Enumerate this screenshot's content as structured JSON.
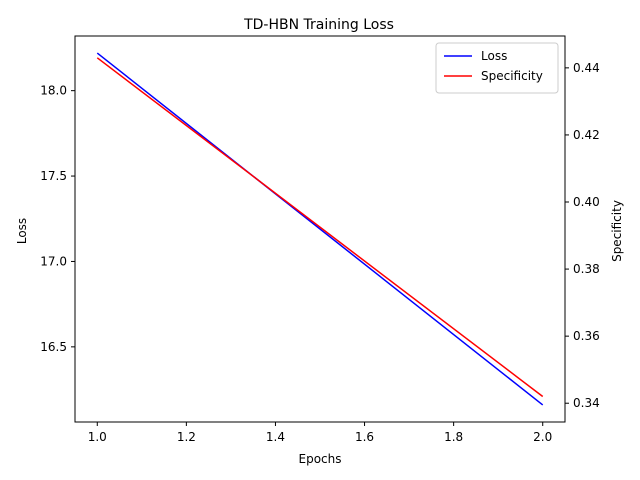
{
  "chart_data": {
    "type": "line",
    "title": "TD-HBN Training Loss",
    "xlabel": "Epochs",
    "ylabel": "Loss",
    "y2label": "Specificity",
    "xlim": [
      0.95,
      2.05
    ],
    "ylim": [
      16.06,
      18.32
    ],
    "y2lim": [
      0.3344,
      0.4495
    ],
    "xticks": [
      1.0,
      1.2,
      1.4,
      1.6,
      1.8,
      2.0
    ],
    "xtick_labels": [
      "1.0",
      "1.2",
      "1.4",
      "1.6",
      "1.8",
      "2.0"
    ],
    "yticks": [
      16.5,
      17.0,
      17.5,
      18.0
    ],
    "ytick_labels": [
      "16.5",
      "17.0",
      "17.5",
      "18.0"
    ],
    "y2ticks": [
      0.34,
      0.36,
      0.38,
      0.4,
      0.42,
      0.44
    ],
    "y2tick_labels": [
      "0.34",
      "0.36",
      "0.38",
      "0.40",
      "0.42",
      "0.44"
    ],
    "grid": false,
    "legend_position": "top-right",
    "series": [
      {
        "name": "Loss",
        "axis": "left",
        "color": "#0000ff",
        "x": [
          1.0,
          2.0
        ],
        "values": [
          18.22,
          16.16
        ]
      },
      {
        "name": "Specificity",
        "axis": "right",
        "color": "#ff0000",
        "x": [
          1.0,
          2.0
        ],
        "values": [
          0.443,
          0.342
        ]
      }
    ]
  }
}
